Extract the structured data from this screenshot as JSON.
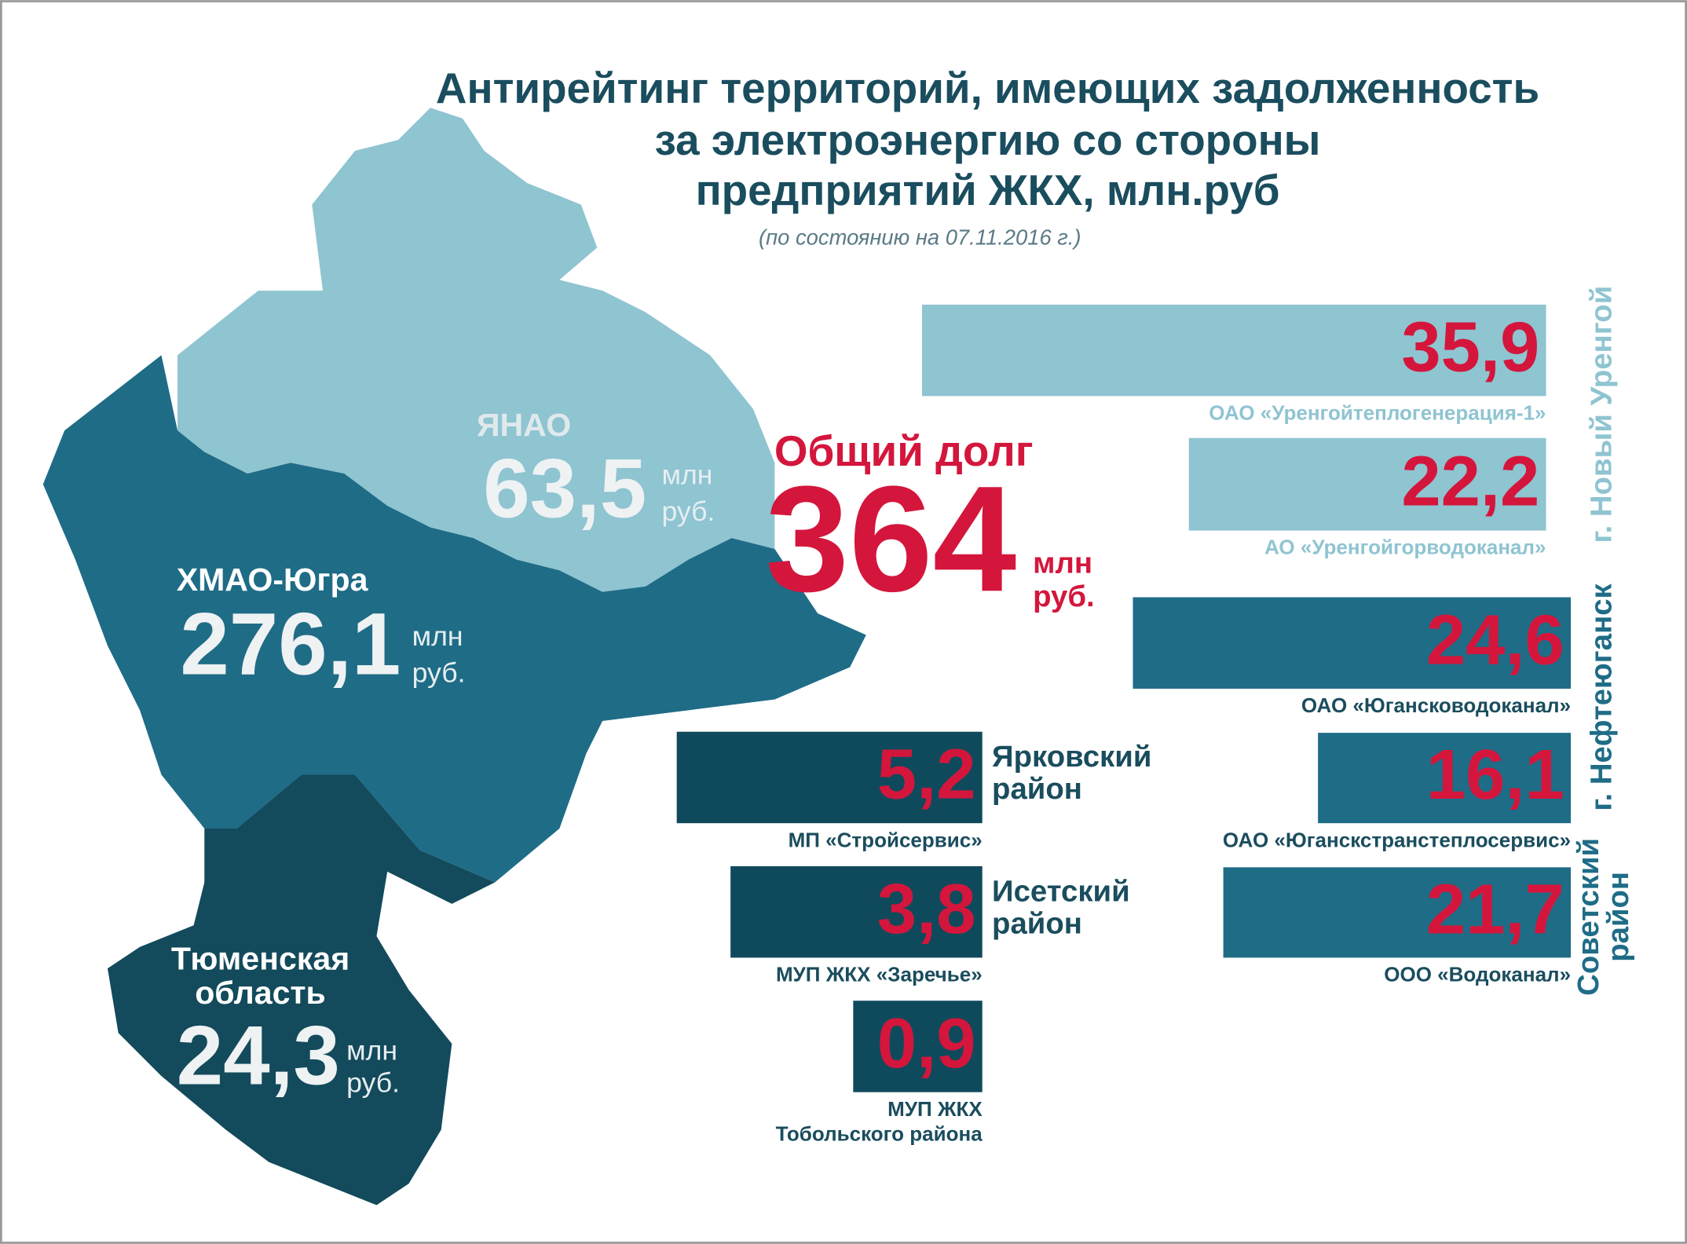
{
  "header": {
    "title": [
      "Антирейтинг территорий, имеющих задолженность",
      "за электроэнергию со стороны",
      "предприятий ЖКХ, млн.руб"
    ],
    "note": "(по состоянию на 07.11.2016 г.)"
  },
  "regions": [
    {
      "name": [
        "ЯНАО"
      ],
      "value": "63,5",
      "unit": [
        "млн",
        "руб."
      ]
    },
    {
      "name": [
        "ХМАО-Югра"
      ],
      "value": "276,1",
      "unit": [
        "млн",
        "руб."
      ]
    },
    {
      "name": [
        "Тюменская",
        "область"
      ],
      "value": "24,3",
      "unit": [
        "млн",
        "руб."
      ]
    }
  ],
  "total": {
    "label": "Общий долг",
    "value": "364",
    "unit": [
      "млн",
      "руб."
    ]
  },
  "groups": [
    {
      "name": [
        "г. Новый Уренгой"
      ],
      "items": [
        {
          "value": "35,9",
          "label": [
            "ОАО «Уренгойтеплогенерация-1»"
          ]
        },
        {
          "value": "22,2",
          "label": [
            "АО «Уренгойгорводоканал»"
          ]
        }
      ]
    },
    {
      "name": [
        "г. Нефтеюганск"
      ],
      "items": [
        {
          "value": "24,6",
          "label": [
            "ОАО «Югансководоканал»"
          ]
        },
        {
          "value": "16,1",
          "label": [
            "ОАО «Юганскстранстеплосервис»"
          ]
        }
      ]
    },
    {
      "name": [
        "Советский",
        "район"
      ],
      "items": [
        {
          "value": "21,7",
          "label": [
            "ООО «Водоканал»"
          ]
        }
      ]
    },
    {
      "name": [
        "Ярковский",
        "район"
      ],
      "items": [
        {
          "value": "5,2",
          "label": [
            "МП «Стройсервис»"
          ]
        }
      ]
    },
    {
      "name": [
        "Исетский",
        "район"
      ],
      "items": [
        {
          "value": "3,8",
          "label": [
            "МУП ЖКХ «Заречье»"
          ]
        }
      ]
    },
    {
      "items": [
        {
          "value": "0,9",
          "label": [
            "МУП ЖКХ",
            "Тобольского района"
          ]
        }
      ]
    }
  ]
}
